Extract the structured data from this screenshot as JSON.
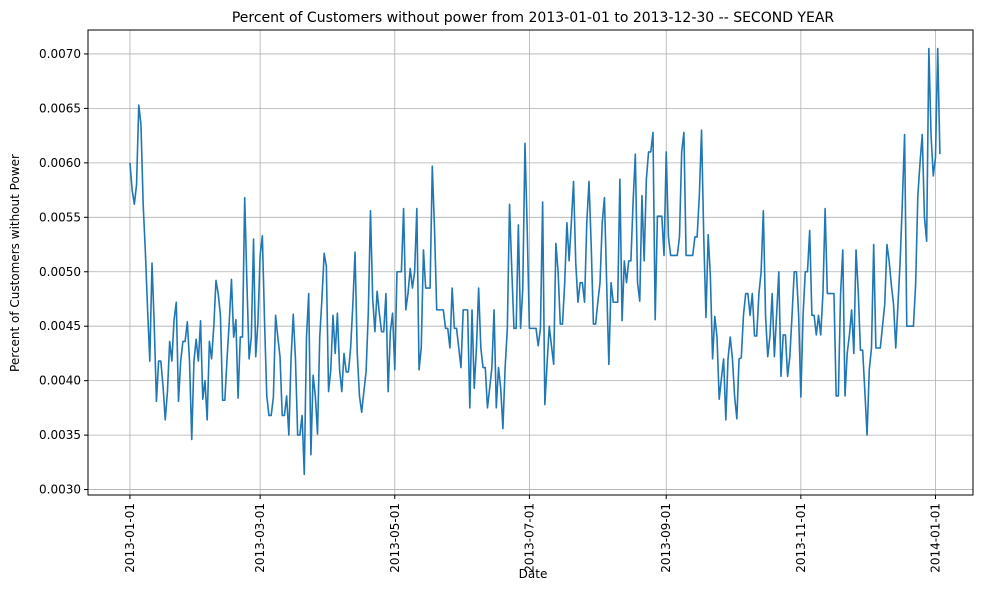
{
  "chart_data": {
    "type": "line",
    "title": "Percent of Customers without power from 2013-01-01 to 2013-12-30 -- SECOND YEAR",
    "xlabel": "Date",
    "ylabel": "Percent of Customers without Power",
    "x_range": [
      "2013-01-01",
      "2013-12-30"
    ],
    "xlim": [
      "2012-12-13",
      "2014-01-18"
    ],
    "ylim": [
      0.00295,
      0.00722
    ],
    "grid": true,
    "line_color": "#1f77b4",
    "x_ticks": [
      "2013-01-01",
      "2013-03-01",
      "2013-05-01",
      "2013-07-01",
      "2013-09-01",
      "2013-11-01",
      "2014-01-01"
    ],
    "y_ticks": [
      "0.0030",
      "0.0035",
      "0.0040",
      "0.0045",
      "0.0050",
      "0.0055",
      "0.0060",
      "0.0065",
      "0.0070"
    ],
    "series": [
      {
        "values": [
          0.006,
          0.00575,
          0.00562,
          0.0058,
          0.00653,
          0.00635,
          0.00562,
          0.00518,
          0.00465,
          0.00418,
          0.00508,
          0.00452,
          0.00381,
          0.00418,
          0.00418,
          0.00395,
          0.00364,
          0.0039,
          0.00436,
          0.00418,
          0.00456,
          0.00472,
          0.00381,
          0.00418,
          0.00436,
          0.00436,
          0.00454,
          0.00418,
          0.00346,
          0.00418,
          0.00438,
          0.00418,
          0.00455,
          0.00383,
          0.004,
          0.00364,
          0.00436,
          0.0042,
          0.0045,
          0.00492,
          0.0048,
          0.0046,
          0.00382,
          0.00382,
          0.0042,
          0.00454,
          0.00493,
          0.0044,
          0.00456,
          0.00384,
          0.0044,
          0.0044,
          0.00568,
          0.0049,
          0.0042,
          0.0044,
          0.0053,
          0.00422,
          0.00454,
          0.00515,
          0.00533,
          0.00454,
          0.00386,
          0.00368,
          0.00368,
          0.00385,
          0.0046,
          0.0044,
          0.00422,
          0.00368,
          0.00368,
          0.00386,
          0.0035,
          0.0042,
          0.00461,
          0.0042,
          0.0035,
          0.0035,
          0.00368,
          0.00314,
          0.0044,
          0.0048,
          0.00332,
          0.00405,
          0.00386,
          0.00351,
          0.0044,
          0.00475,
          0.00517,
          0.00505,
          0.0039,
          0.0041,
          0.0046,
          0.00425,
          0.00462,
          0.0041,
          0.0039,
          0.00425,
          0.00408,
          0.00408,
          0.0043,
          0.0047,
          0.00518,
          0.00425,
          0.00386,
          0.00371,
          0.0039,
          0.00408,
          0.00462,
          0.00556,
          0.00475,
          0.00445,
          0.00482,
          0.00462,
          0.00445,
          0.00445,
          0.0048,
          0.0039,
          0.00445,
          0.00462,
          0.0041,
          0.005,
          0.005,
          0.005,
          0.00558,
          0.00465,
          0.0048,
          0.00503,
          0.00485,
          0.005,
          0.00558,
          0.0041,
          0.0043,
          0.0052,
          0.00485,
          0.00485,
          0.00485,
          0.00597,
          0.0054,
          0.00465,
          0.00465,
          0.00465,
          0.00465,
          0.00448,
          0.00448,
          0.0043,
          0.00485,
          0.00448,
          0.00448,
          0.0043,
          0.00412,
          0.00465,
          0.00465,
          0.00465,
          0.00375,
          0.00465,
          0.00393,
          0.0043,
          0.00485,
          0.0043,
          0.00412,
          0.00412,
          0.00375,
          0.00393,
          0.00412,
          0.00465,
          0.00375,
          0.00412,
          0.00393,
          0.00356,
          0.00412,
          0.00448,
          0.00562,
          0.00503,
          0.00448,
          0.00448,
          0.00543,
          0.00448,
          0.00485,
          0.00618,
          0.0054,
          0.00448,
          0.00448,
          0.00448,
          0.00448,
          0.00432,
          0.00448,
          0.00564,
          0.00378,
          0.00415,
          0.0045,
          0.00432,
          0.00415,
          0.00526,
          0.005,
          0.00452,
          0.00452,
          0.0049,
          0.00545,
          0.0051,
          0.00545,
          0.00583,
          0.00508,
          0.00472,
          0.0049,
          0.0049,
          0.00472,
          0.00545,
          0.00583,
          0.00525,
          0.00452,
          0.00452,
          0.00472,
          0.0049,
          0.00545,
          0.00568,
          0.0049,
          0.00415,
          0.0049,
          0.00472,
          0.00472,
          0.00472,
          0.00585,
          0.00455,
          0.0051,
          0.0049,
          0.0051,
          0.0051,
          0.00565,
          0.00608,
          0.0049,
          0.00473,
          0.0057,
          0.0051,
          0.00585,
          0.0061,
          0.0061,
          0.00628,
          0.00456,
          0.00551,
          0.00551,
          0.00551,
          0.00515,
          0.0061,
          0.00532,
          0.00515,
          0.00515,
          0.00515,
          0.00515,
          0.00532,
          0.0061,
          0.00628,
          0.00515,
          0.00515,
          0.00515,
          0.00515,
          0.00532,
          0.00532,
          0.0057,
          0.0063,
          0.00532,
          0.00458,
          0.00534,
          0.00496,
          0.0042,
          0.00459,
          0.0044,
          0.00383,
          0.00402,
          0.0042,
          0.00364,
          0.0042,
          0.0044,
          0.0042,
          0.00385,
          0.00365,
          0.0042,
          0.00421,
          0.0046,
          0.0048,
          0.0048,
          0.0046,
          0.0048,
          0.00441,
          0.00441,
          0.0048,
          0.005,
          0.00556,
          0.0046,
          0.00422,
          0.00441,
          0.0048,
          0.00422,
          0.0046,
          0.005,
          0.00404,
          0.00442,
          0.00442,
          0.00404,
          0.00422,
          0.0046,
          0.005,
          0.005,
          0.0046,
          0.00385,
          0.0046,
          0.005,
          0.005,
          0.00538,
          0.0046,
          0.0046,
          0.00442,
          0.0046,
          0.00442,
          0.0048,
          0.00558,
          0.0048,
          0.0048,
          0.0048,
          0.0048,
          0.00386,
          0.00386,
          0.0048,
          0.0052,
          0.00386,
          0.00425,
          0.00442,
          0.00465,
          0.00425,
          0.0052,
          0.00482,
          0.00428,
          0.00428,
          0.0039,
          0.0035,
          0.0041,
          0.0043,
          0.00525,
          0.0043,
          0.0043,
          0.0043,
          0.0045,
          0.0047,
          0.00525,
          0.0051,
          0.00488,
          0.0047,
          0.0043,
          0.0047,
          0.0051,
          0.00565,
          0.00626,
          0.0045,
          0.0045,
          0.0045,
          0.0045,
          0.00488,
          0.0057,
          0.006,
          0.00626,
          0.0055,
          0.00528,
          0.00705,
          0.00625,
          0.00588,
          0.00605,
          0.00705,
          0.00608
        ]
      }
    ]
  }
}
